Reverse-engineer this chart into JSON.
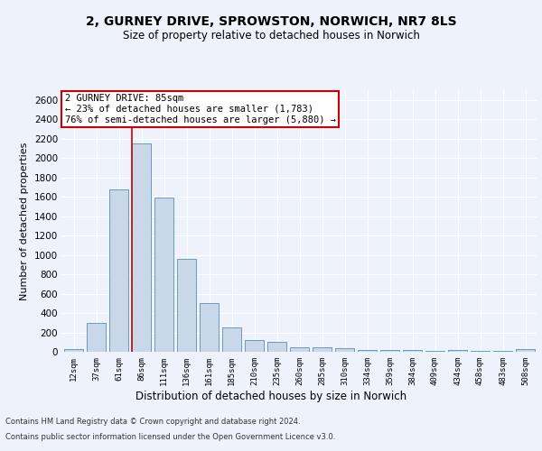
{
  "title": "2, GURNEY DRIVE, SPROWSTON, NORWICH, NR7 8LS",
  "subtitle": "Size of property relative to detached houses in Norwich",
  "xlabel": "Distribution of detached houses by size in Norwich",
  "ylabel": "Number of detached properties",
  "bar_color": "#c8d8e8",
  "bar_edge_color": "#5b8db8",
  "bins": [
    "12sqm",
    "37sqm",
    "61sqm",
    "86sqm",
    "111sqm",
    "136sqm",
    "161sqm",
    "185sqm",
    "210sqm",
    "235sqm",
    "260sqm",
    "285sqm",
    "310sqm",
    "334sqm",
    "359sqm",
    "384sqm",
    "409sqm",
    "434sqm",
    "458sqm",
    "483sqm",
    "508sqm"
  ],
  "values": [
    25,
    300,
    1680,
    2150,
    1590,
    960,
    505,
    250,
    120,
    100,
    50,
    45,
    35,
    20,
    20,
    20,
    10,
    20,
    10,
    5,
    25
  ],
  "vline_x": 2.575,
  "vline_color": "#cc0000",
  "annotation_title": "2 GURNEY DRIVE: 85sqm",
  "annotation_line1": "← 23% of detached houses are smaller (1,783)",
  "annotation_line2": "76% of semi-detached houses are larger (5,880) →",
  "annotation_box_color": "#ffffff",
  "annotation_box_edge": "#cc0000",
  "footer1": "Contains HM Land Registry data © Crown copyright and database right 2024.",
  "footer2": "Contains public sector information licensed under the Open Government Licence v3.0.",
  "background_color": "#eef2fb",
  "plot_background": "#eef2fb",
  "ylim": [
    0,
    2700
  ],
  "yticks": [
    0,
    200,
    400,
    600,
    800,
    1000,
    1200,
    1400,
    1600,
    1800,
    2000,
    2200,
    2400,
    2600
  ],
  "title_fontsize": 10,
  "subtitle_fontsize": 8.5,
  "ylabel_fontsize": 8,
  "xtick_fontsize": 6.5,
  "ytick_fontsize": 7.5,
  "xlabel_fontsize": 8.5,
  "footer_fontsize": 6,
  "annotation_fontsize": 7.5
}
